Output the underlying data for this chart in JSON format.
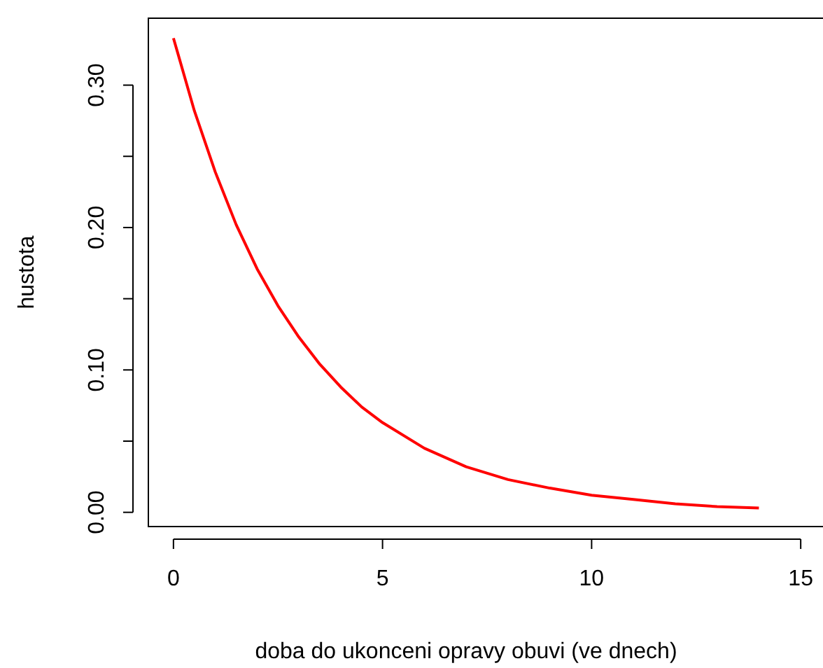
{
  "chart_data": {
    "type": "line",
    "xlabel": "doba do ukonceni opravy obuvi (ve dnech)",
    "ylabel": "hustota",
    "x": [
      0,
      0.5,
      1,
      1.5,
      2,
      2.5,
      3,
      3.5,
      4,
      4.5,
      5,
      6,
      7,
      8,
      9,
      10,
      11,
      12,
      13,
      14
    ],
    "series": [
      {
        "color": "#ff0000",
        "values": [
          0.333,
          0.282,
          0.239,
          0.202,
          0.171,
          0.145,
          0.123,
          0.104,
          0.088,
          0.074,
          0.063,
          0.045,
          0.032,
          0.023,
          0.017,
          0.012,
          0.009,
          0.006,
          0.004,
          0.003
        ]
      }
    ],
    "xlim": [
      -0.6,
      15.6
    ],
    "ylim": [
      -0.01,
      0.347
    ],
    "xticks": [
      0,
      5,
      10,
      15
    ],
    "yticks": [
      {
        "value": 0,
        "label": "0.00"
      },
      {
        "value": 0.05,
        "label": null
      },
      {
        "value": 0.1,
        "label": "0.10"
      },
      {
        "value": 0.15,
        "label": null
      },
      {
        "value": 0.2,
        "label": "0.20"
      },
      {
        "value": 0.25,
        "label": null
      },
      {
        "value": 0.3,
        "label": "0.30"
      }
    ],
    "grid": false,
    "line_style": "solid",
    "marker": "none"
  }
}
